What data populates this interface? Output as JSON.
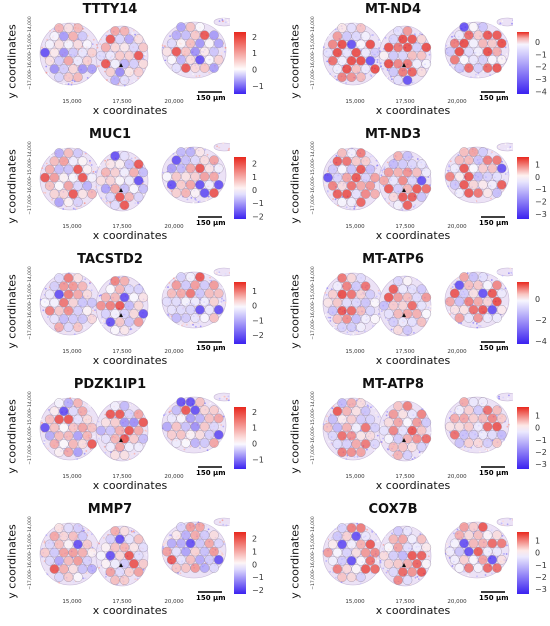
{
  "chart_data": [
    {
      "type": "heatmap",
      "title": "TTTY14",
      "xlabel": "x coordinates",
      "ylabel": "y coordinates",
      "xticks": [
        "15,000",
        "17,500",
        "20,000"
      ],
      "yticks": [
        "−17,000",
        "−16,000",
        "−15,000",
        "−14,000"
      ],
      "colorbar_ticks": [
        "2",
        "1",
        "0",
        "−1"
      ],
      "colorbar_range": [
        -1.5,
        2.3
      ],
      "scalebar": "150 µm"
    },
    {
      "type": "heatmap",
      "title": "MT-ND4",
      "xlabel": "x coordinates",
      "ylabel": "y coordinates",
      "xticks": [
        "15,000",
        "17,500",
        "20,000"
      ],
      "yticks": [
        "−17,000",
        "−16,000",
        "−15,000",
        "−14,000"
      ],
      "colorbar_ticks": [
        "0",
        "−1",
        "−2",
        "−3",
        "−4"
      ],
      "colorbar_range": [
        -4.2,
        0.8
      ],
      "scalebar": "150 µm"
    },
    {
      "type": "heatmap",
      "title": "MUC1",
      "xlabel": "x coordinates",
      "ylabel": "y coordinates",
      "xticks": [
        "15,000",
        "17,500",
        "20,000"
      ],
      "yticks": [
        "−17,000",
        "−16,000",
        "−15,000",
        "−14,000"
      ],
      "colorbar_ticks": [
        "2",
        "1",
        "0",
        "−1",
        "−2"
      ],
      "colorbar_range": [
        -2.2,
        2.5
      ],
      "scalebar": "150 µm"
    },
    {
      "type": "heatmap",
      "title": "MT-ND3",
      "xlabel": "x coordinates",
      "ylabel": "y coordinates",
      "xticks": [
        "15,000",
        "17,500",
        "20,000"
      ],
      "yticks": [
        "−17,000",
        "−16,000",
        "−15,000",
        "−14,000"
      ],
      "colorbar_ticks": [
        "1",
        "0",
        "−1",
        "−2",
        "−3"
      ],
      "colorbar_range": [
        -3.4,
        1.6
      ],
      "scalebar": "150 µm"
    },
    {
      "type": "heatmap",
      "title": "TACSTD2",
      "xlabel": "x coordinates",
      "ylabel": "y coordinates",
      "xticks": [
        "15,000",
        "17,500",
        "20,000"
      ],
      "yticks": [
        "−17,000",
        "−16,000",
        "−15,000",
        "−14,000"
      ],
      "colorbar_ticks": [
        "1",
        "0",
        "−1",
        "−2"
      ],
      "colorbar_range": [
        -2.6,
        1.6
      ],
      "scalebar": "150 µm"
    },
    {
      "type": "heatmap",
      "title": "MT-ATP6",
      "xlabel": "x coordinates",
      "ylabel": "y coordinates",
      "xticks": [
        "15,000",
        "17,500",
        "20,000"
      ],
      "yticks": [
        "−17,000",
        "−16,000",
        "−15,000",
        "−14,000"
      ],
      "colorbar_ticks": [
        "0",
        "−2",
        "−4"
      ],
      "colorbar_range": [
        -4.3,
        1.6
      ],
      "scalebar": "150 µm"
    },
    {
      "type": "heatmap",
      "title": "PDZK1IP1",
      "xlabel": "x coordinates",
      "ylabel": "y coordinates",
      "xticks": [
        "15,000",
        "17,500",
        "20,000"
      ],
      "yticks": [
        "−17,000",
        "−16,000",
        "−15,000",
        "−14,000"
      ],
      "colorbar_ticks": [
        "2",
        "1",
        "0",
        "−1"
      ],
      "colorbar_range": [
        -1.6,
        2.3
      ],
      "scalebar": "150 µm"
    },
    {
      "type": "heatmap",
      "title": "MT-ATP8",
      "xlabel": "x coordinates",
      "ylabel": "y coordinates",
      "xticks": [
        "15,000",
        "17,500",
        "20,000"
      ],
      "yticks": [
        "−17,000",
        "−16,000",
        "−15,000",
        "−14,000"
      ],
      "colorbar_ticks": [
        "1",
        "0",
        "−1",
        "−2",
        "−3"
      ],
      "colorbar_range": [
        -3.4,
        1.7
      ],
      "scalebar": "150 µm"
    },
    {
      "type": "heatmap",
      "title": "MMP7",
      "xlabel": "x coordinates",
      "ylabel": "y coordinates",
      "xticks": [
        "15,000",
        "17,500",
        "20,000"
      ],
      "yticks": [
        "−17,000",
        "−16,000",
        "−15,000",
        "−14,000"
      ],
      "colorbar_ticks": [
        "2",
        "1",
        "0",
        "−1",
        "−2"
      ],
      "colorbar_range": [
        -2.3,
        2.5
      ],
      "scalebar": "150 µm"
    },
    {
      "type": "heatmap",
      "title": "COX7B",
      "xlabel": "x coordinates",
      "ylabel": "y coordinates",
      "xticks": [
        "15,000",
        "17,500",
        "20,000"
      ],
      "yticks": [
        "−17,000",
        "−16,000",
        "−15,000",
        "−14,000"
      ],
      "colorbar_ticks": [
        "1",
        "0",
        "−1",
        "−2",
        "−3"
      ],
      "colorbar_range": [
        -3.4,
        1.7
      ],
      "scalebar": "150 µm"
    }
  ],
  "colors": {
    "high": "#e8281e",
    "mid": "#ffffff",
    "low": "#3b22f0",
    "outline": "#9a8fa6"
  }
}
